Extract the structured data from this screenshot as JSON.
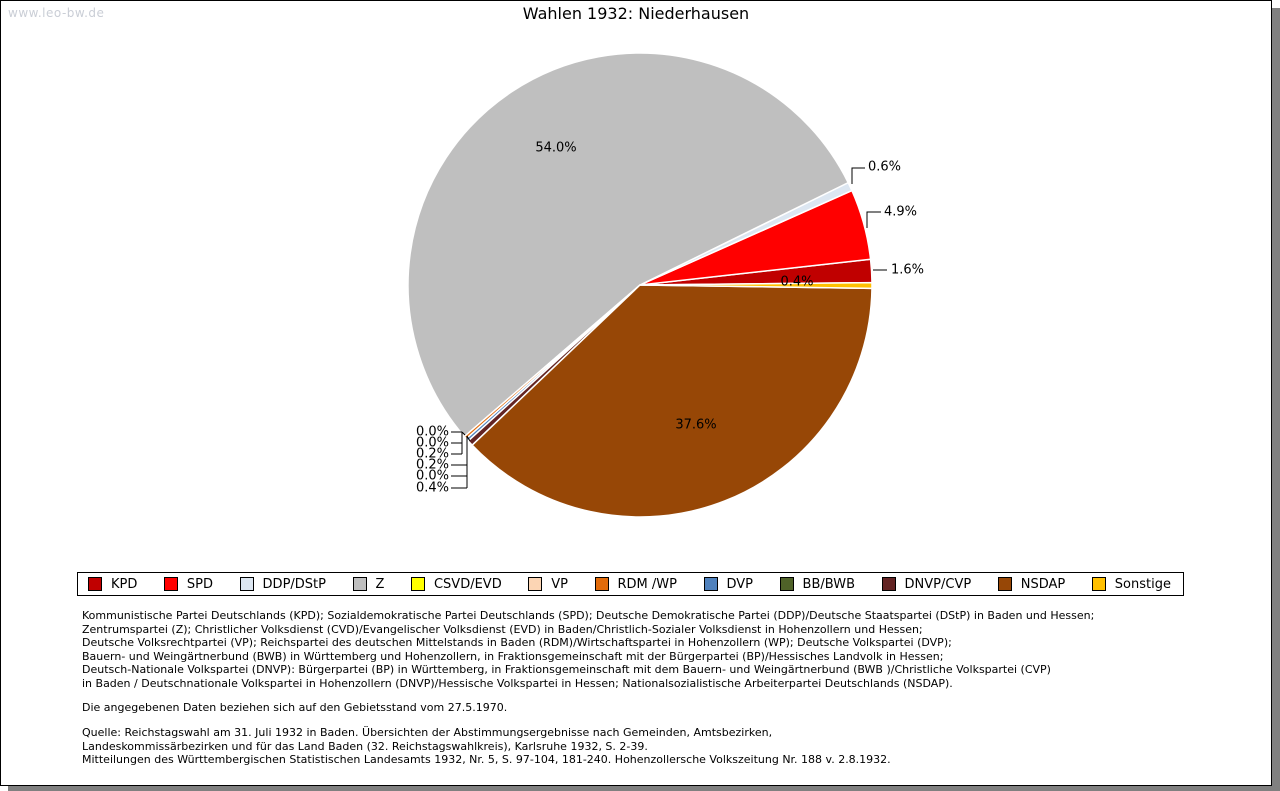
{
  "watermark": "www.leo-bw.de",
  "title": "Wahlen 1932: Niederhausen",
  "chart_data": {
    "type": "pie",
    "title": "Wahlen 1932: Niederhausen",
    "legend_position": "bottom",
    "direction": "counterclockwise",
    "start_angle_deg": 0.6,
    "series": [
      {
        "label": "KPD",
        "value": 1.6,
        "display": "1.6%",
        "color": "#C00000"
      },
      {
        "label": "SPD",
        "value": 4.9,
        "display": "4.9%",
        "color": "#FF0000"
      },
      {
        "label": "DDP/DStP",
        "value": 0.6,
        "display": "0.6%",
        "color": "#DCE6F1"
      },
      {
        "label": "Z",
        "value": 54.0,
        "display": "54.0%",
        "color": "#BFBFBF"
      },
      {
        "label": "CSVD/EVD",
        "value": 0.0,
        "display": "0.0%",
        "color": "#FFFF00"
      },
      {
        "label": "VP",
        "value": 0.0,
        "display": "0.0%",
        "color": "#FCD5B4"
      },
      {
        "label": "RDM /WP",
        "value": 0.2,
        "display": "0.2%",
        "color": "#E26B0A"
      },
      {
        "label": "DVP",
        "value": 0.2,
        "display": "0.2%",
        "color": "#4F81BD"
      },
      {
        "label": "BB/BWB",
        "value": 0.0,
        "display": "0.0%",
        "color": "#4F6228"
      },
      {
        "label": "DNVP/CVP",
        "value": 0.4,
        "display": "0.4%",
        "color": "#632423"
      },
      {
        "label": "NSDAP",
        "value": 37.6,
        "display": "37.6%",
        "color": "#974706"
      },
      {
        "label": "Sonstige",
        "value": 0.4,
        "display": "0.4%",
        "color": "#FFC000"
      }
    ]
  },
  "footnotes": {
    "party_definitions": [
      "Kommunistische Partei Deutschlands (KPD); Sozialdemokratische Partei Deutschlands (SPD); Deutsche Demokratische Partei (DDP)/Deutsche Staatspartei (DStP) in Baden und Hessen;",
      "Zentrumspartei (Z); Christlicher Volksdienst (CVD)/Evangelischer Volksdienst (EVD) in Baden/Christlich-Sozialer Volksdienst in Hohenzollern und Hessen;",
      "Deutsche Volksrechtpartei (VP); Reichspartei des deutschen Mittelstands in Baden (RDM)/Wirtschaftspartei in Hohenzollern (WP); Deutsche Volkspartei (DVP);",
      "Bauern- und Weingärtnerbund (BWB) in Württemberg und Hohenzollern, in Fraktionsgemeinschaft mit der Bürgerpartei (BP)/Hessisches Landvolk in Hessen;",
      "Deutsch-Nationale Volkspartei (DNVP): Bürgerpartei (BP) in Württemberg, in Fraktionsgemeinschaft mit dem Bauern- und Weingärtnerbund (BWB )/Christliche Volkspartei (CVP)",
      "in Baden / Deutschnationale Volkspartei in Hohenzollern (DNVP)/Hessische Volkspartei in Hessen; Nationalsozialistische Arbeiterpartei Deutschlands (NSDAP)."
    ],
    "data_note": "Die angegebenen Daten beziehen sich auf den Gebietsstand vom 27.5.1970.",
    "source_lines": [
      "Quelle: Reichstagswahl am 31. Juli 1932 in Baden. Übersichten der Abstimmungsergebnisse nach Gemeinden, Amtsbezirken,",
      "Landeskommissärbezirken und für das Land Baden (32. Reichstagswahlkreis), Karlsruhe 1932, S. 2-39.",
      "Mitteilungen des Württembergischen Statistischen Landesamts 1932, Nr. 5, S. 97-104, 181-240. Hohenzollersche Volkszeitung Nr. 188 v. 2.8.1932."
    ]
  }
}
